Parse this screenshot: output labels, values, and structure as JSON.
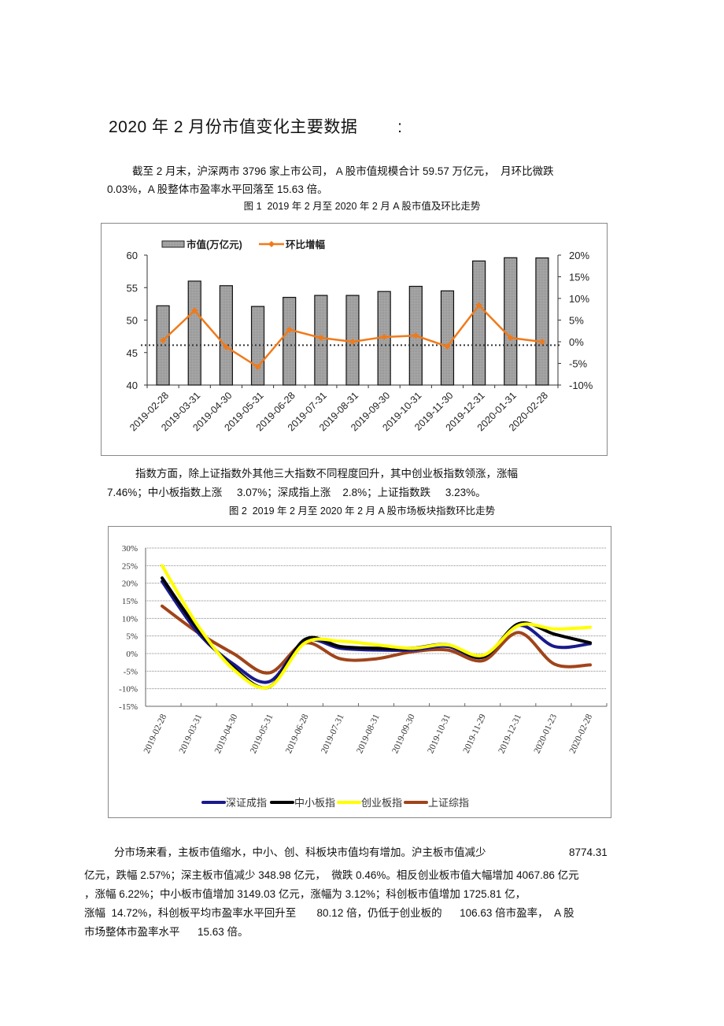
{
  "title": "2020 年 2 月份市值变化主要数据        :",
  "paragraph1": {
    "line1": "截至 2 月末，沪深两市 3796 家上市公司， A 股市值规模合计 59.57 万亿元，  月环比微跌",
    "line2": "0.03%，A 股整体市盈率水平回落至 15.63 倍。"
  },
  "figure1": {
    "caption": "图 1  2019 年 2 月至 2020 年 2 月 A 股市值及环比走势"
  },
  "paragraph2": {
    "line1": "指数方面，除上证指数外其他三大指数不同程度回升，其中创业板指数领涨，涨幅",
    "line2": "7.46%；中小板指数上涨     3.07%；深成指上涨    2.8%；上证指数跌     3.23%。"
  },
  "figure2": {
    "caption": "图 2  2019 年 2 月至 2020 年 2 月 A 股市场板块指数环比走势"
  },
  "paragraph3": {
    "line1": "分市场来看，主板市值缩水，中小、创、科板块市值均有增加。沪主板市值减少",
    "line1_value": "8774.31",
    "line2": "亿元，跌幅 2.57%；深主板市值减少 348.98 亿元，  微跌 0.46%。相反创业板市值大幅增加 4067.86 亿元",
    "line3": "，涨幅 6.22%；中小板市值增加 3149.03 亿元，涨幅为 3.12%；科创板市值增加 1725.81 亿，",
    "line4": "涨幅  14.72%，科创板平均市盈率水平回升至       80.12 倍，仍低于创业板的      106.63 倍市盈率，  A 股",
    "line5": "市场整体市盈率水平      15.63 倍。"
  },
  "chart_data": [
    {
      "type": "bar+line",
      "title": "图 1  2019 年 2 月至 2020 年 2 月 A 股市值及环比走势",
      "categories": [
        "2019-02-28",
        "2019-03-31",
        "2019-04-30",
        "2019-05-31",
        "2019-06-28",
        "2019-07-31",
        "2019-08-31",
        "2019-09-30",
        "2019-10-31",
        "2019-11-30",
        "2019-12-31",
        "2020-01-31",
        "2020-02-28"
      ],
      "series": [
        {
          "name": "市值(万亿元)",
          "type": "bar",
          "axis": "left",
          "color": "#a0a0a0",
          "values": [
            52.2,
            56.0,
            55.3,
            52.1,
            53.5,
            53.8,
            53.8,
            54.4,
            55.2,
            54.5,
            59.1,
            59.6,
            59.57
          ]
        },
        {
          "name": "环比增幅",
          "type": "line",
          "axis": "right",
          "color": "#f07a1a",
          "values": [
            0.3,
            7.2,
            -1.2,
            -5.8,
            2.8,
            0.9,
            0.0,
            1.1,
            1.4,
            -1.1,
            8.4,
            0.9,
            -0.03
          ]
        }
      ],
      "left_axis": {
        "ylim": [
          40,
          60
        ],
        "ticks": [
          "40",
          "45",
          "50",
          "55",
          "60"
        ]
      },
      "right_axis": {
        "ylim": [
          -10,
          20
        ],
        "ticks": [
          "-10%",
          "-5%",
          "0%",
          "5%",
          "10%",
          "15%",
          "20%"
        ]
      },
      "zero_reference_line": "dotted",
      "legend_position": "top",
      "grid": false
    },
    {
      "type": "line",
      "title": "图 2  2019 年 2 月至 2020 年 2 月 A 股市场板块指数环比走势",
      "categories": [
        "2019-02-28",
        "2019-03-31",
        "2019-04-30",
        "2019-05-31",
        "2019-06-28",
        "2019-07-31",
        "2019-08-31",
        "2019-09-30",
        "2019-10-31",
        "2019-11-29",
        "2019-12-31",
        "2020-01-23",
        "2020-02-28"
      ],
      "series": [
        {
          "name": "深证成指",
          "color": "#1a1a8c",
          "values": [
            20.5,
            6.0,
            -3.0,
            -8.0,
            3.5,
            1.5,
            1.0,
            1.0,
            2.0,
            -1.0,
            8.0,
            2.0,
            2.8
          ]
        },
        {
          "name": "中小板指",
          "color": "#000000",
          "values": [
            21.5,
            7.0,
            -4.0,
            -9.5,
            4.0,
            2.0,
            1.5,
            1.5,
            2.5,
            -1.0,
            8.5,
            5.5,
            3.07
          ]
        },
        {
          "name": "创业板指",
          "color": "#ffff00",
          "values": [
            25.0,
            8.0,
            -4.5,
            -9.5,
            3.0,
            3.5,
            2.5,
            1.5,
            2.5,
            -0.5,
            8.0,
            7.0,
            7.46
          ]
        },
        {
          "name": "上证综指",
          "color": "#a0441a",
          "values": [
            13.5,
            6.0,
            0.0,
            -5.5,
            3.0,
            -1.5,
            -1.5,
            0.5,
            1.0,
            -2.0,
            6.0,
            -3.0,
            -3.23
          ]
        }
      ],
      "ylim": [
        -15,
        30
      ],
      "yticks": [
        "30%",
        "25%",
        "20%",
        "15%",
        "10%",
        "5%",
        "0%",
        "-5%",
        "-10%",
        "-15%"
      ],
      "grid": true,
      "legend_position": "bottom"
    }
  ]
}
